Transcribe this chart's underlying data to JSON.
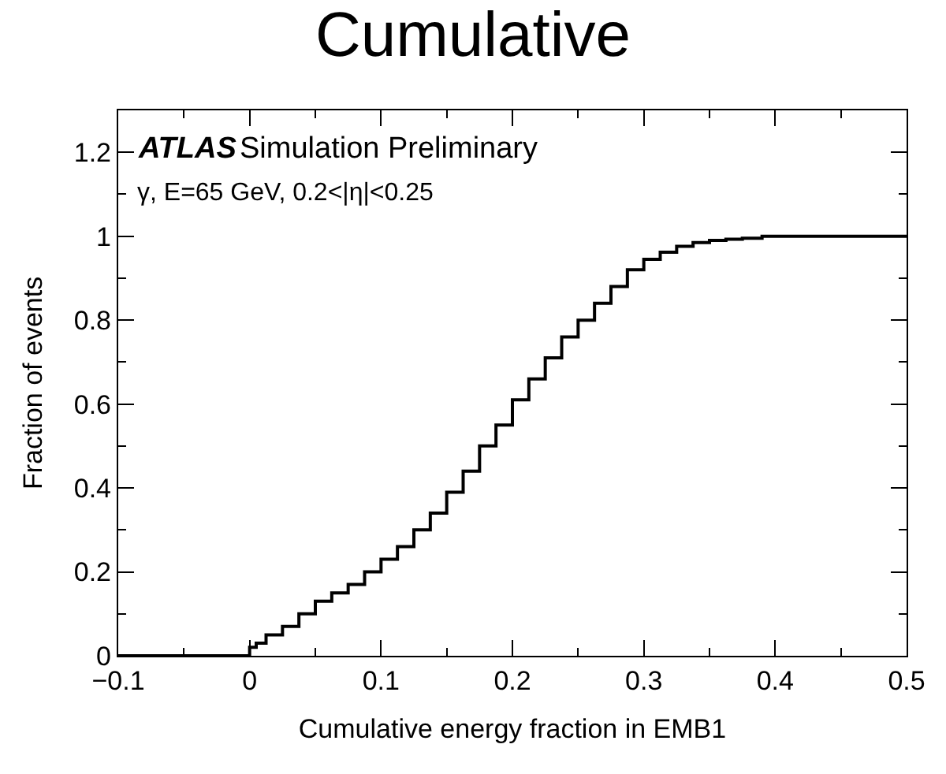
{
  "chart_data": {
    "type": "step",
    "title": "Cumulative",
    "xlabel": "Cumulative energy fraction in EMB1",
    "ylabel": "Fraction of events",
    "annotations": [
      "ATLAS",
      "Simulation Preliminary",
      "γ, E=65 GeV, 0.2<|η|<0.25"
    ],
    "x": [
      -0.1,
      0,
      0.005,
      0.0125,
      0.025,
      0.0375,
      0.05,
      0.0625,
      0.075,
      0.0875,
      0.1,
      0.1125,
      0.125,
      0.1375,
      0.15,
      0.1625,
      0.175,
      0.1875,
      0.2,
      0.2125,
      0.225,
      0.2375,
      0.25,
      0.2625,
      0.275,
      0.2875,
      0.3,
      0.3125,
      0.325,
      0.3375,
      0.35,
      0.3625,
      0.375,
      0.39,
      0.5
    ],
    "series": [
      {
        "color": "#000000",
        "values": [
          0,
          0.02,
          0.03,
          0.05,
          0.07,
          0.1,
          0.13,
          0.15,
          0.17,
          0.2,
          0.23,
          0.26,
          0.3,
          0.34,
          0.39,
          0.44,
          0.5,
          0.55,
          0.61,
          0.66,
          0.71,
          0.76,
          0.8,
          0.84,
          0.88,
          0.92,
          0.945,
          0.962,
          0.976,
          0.985,
          0.99,
          0.993,
          0.995,
          1.0,
          1.0
        ]
      }
    ],
    "xlim": [
      -0.1,
      0.5
    ],
    "ylim": [
      0,
      1.3
    ],
    "xticks": [
      {
        "value": -0.1,
        "label": "−0.1"
      },
      0,
      0.1,
      0.2,
      0.3,
      0.4,
      0.5
    ],
    "yticks": [
      0,
      0.2,
      0.4,
      0.6,
      0.8,
      1,
      1.2
    ],
    "line_style": "solid",
    "marker": "none"
  }
}
